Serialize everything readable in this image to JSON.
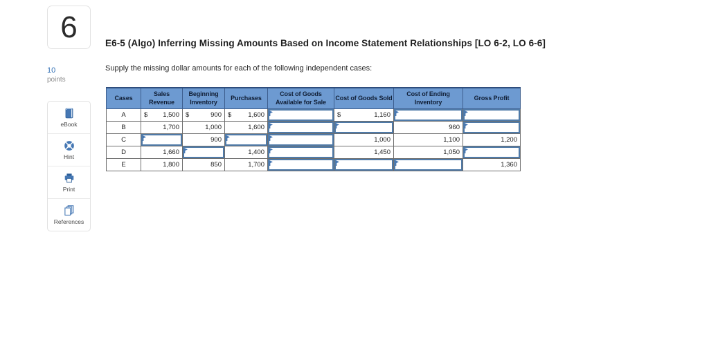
{
  "question": {
    "number": "6",
    "points_value": "10",
    "points_label": "points"
  },
  "sidebar": {
    "items": [
      {
        "icon": "ebook-icon",
        "label": "eBook"
      },
      {
        "icon": "hint-icon",
        "label": "Hint"
      },
      {
        "icon": "print-icon",
        "label": "Print"
      },
      {
        "icon": "references-icon",
        "label": "References"
      }
    ]
  },
  "main": {
    "title": "E6-5 (Algo) Inferring Missing Amounts Based on Income Statement Relationships [LO 6-2, LO 6-6]",
    "instruction": "Supply the missing dollar amounts for each of the following independent cases:"
  },
  "table": {
    "columns": [
      "Cases",
      "Sales Revenue",
      "Beginning Inventory",
      "Purchases",
      "Cost of Goods Available for Sale",
      "Cost of Goods Sold",
      "Cost of Ending Inventory",
      "Gross Profit"
    ],
    "rows": [
      {
        "case": "A",
        "cells": [
          {
            "text": "1,500",
            "dollar": true
          },
          {
            "text": "900",
            "dollar": true
          },
          {
            "text": "1,600",
            "dollar": true
          },
          {
            "input": true
          },
          {
            "text": "1,160",
            "dollar": true
          },
          {
            "input": true
          },
          {
            "input": true
          }
        ]
      },
      {
        "case": "B",
        "cells": [
          {
            "text": "1,700"
          },
          {
            "text": "1,000"
          },
          {
            "text": "1,600"
          },
          {
            "input": true
          },
          {
            "input": true
          },
          {
            "text": "960"
          },
          {
            "input": true
          }
        ]
      },
      {
        "case": "C",
        "cells": [
          {
            "input": true
          },
          {
            "text": "900"
          },
          {
            "input": true
          },
          {
            "input": true
          },
          {
            "text": "1,000"
          },
          {
            "text": "1,100"
          },
          {
            "text": "1,200"
          }
        ]
      },
      {
        "case": "D",
        "cells": [
          {
            "text": "1,660"
          },
          {
            "input": true
          },
          {
            "text": "1,400"
          },
          {
            "input": true
          },
          {
            "text": "1,450"
          },
          {
            "text": "1,050"
          },
          {
            "input": true
          }
        ]
      },
      {
        "case": "E",
        "cells": [
          {
            "text": "1,800"
          },
          {
            "text": "850"
          },
          {
            "text": "1,700"
          },
          {
            "input": true
          },
          {
            "input": true
          },
          {
            "input": true
          },
          {
            "text": "1,360"
          }
        ]
      }
    ]
  },
  "colors": {
    "header_bg": "#6d9ad1",
    "header_border": "#3d5e8e",
    "input_border": "#4f7aa8",
    "flag": "#4677b3",
    "icon_blue": "#4678b4",
    "points_blue": "#2e6db4"
  }
}
